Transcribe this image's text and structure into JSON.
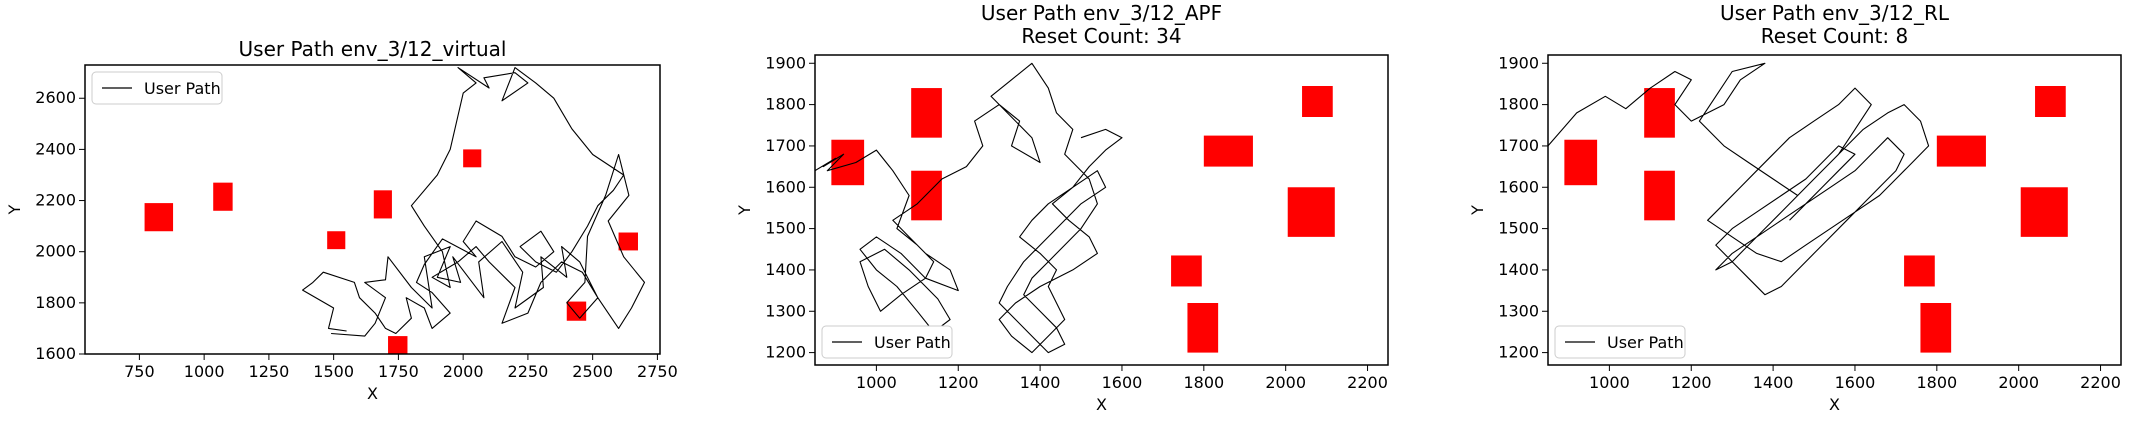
{
  "chart_data": [
    {
      "type": "line",
      "title": "User Path env_3/12_virtual",
      "subtitle": "",
      "xlabel": "X",
      "ylabel": "Y",
      "xlim": [
        540,
        2760
      ],
      "ylim": [
        1600,
        2730
      ],
      "xticks": [
        750,
        1000,
        1250,
        1500,
        1750,
        2000,
        2250,
        2500,
        2750
      ],
      "yticks": [
        1600,
        1800,
        2000,
        2200,
        2400,
        2600
      ],
      "legend": {
        "label": "User Path",
        "placement": "top-left"
      },
      "obstacles": [
        {
          "x": 770,
          "y": 2080,
          "w": 110,
          "h": 110
        },
        {
          "x": 1035,
          "y": 2160,
          "w": 75,
          "h": 110
        },
        {
          "x": 1475,
          "y": 2010,
          "w": 70,
          "h": 70
        },
        {
          "x": 1655,
          "y": 2130,
          "w": 70,
          "h": 110
        },
        {
          "x": 2000,
          "y": 2330,
          "w": 70,
          "h": 70
        },
        {
          "x": 1710,
          "y": 1600,
          "w": 75,
          "h": 70
        },
        {
          "x": 2400,
          "y": 1730,
          "w": 75,
          "h": 75
        },
        {
          "x": 2600,
          "y": 2005,
          "w": 75,
          "h": 70
        }
      ],
      "series": [
        {
          "x": [
            1490,
            1620,
            1660,
            1700,
            1620,
            1700,
            1710,
            1800,
            1880,
            1850,
            1950,
            1900,
            1990,
            1960,
            2080,
            2060,
            2150,
            2230,
            2200,
            2310,
            2300,
            2400,
            2380,
            2450,
            2520,
            2600,
            2650,
            2700,
            2620,
            2560,
            2640,
            2600,
            2550,
            2480,
            2470,
            2400,
            2450,
            2520,
            2460,
            2380,
            2300,
            2250,
            2150,
            2200,
            2100,
            2050,
            1980,
            1880,
            1950,
            1920,
            1850,
            1800,
            1900,
            1950,
            2000,
            2050,
            1980,
            2100,
            2080,
            2200,
            2250,
            2150,
            2200,
            2280,
            2350,
            2420,
            2500,
            2620,
            2580,
            2520,
            2480,
            2420,
            2360,
            2280,
            2220,
            2300,
            2350,
            2280,
            2200,
            2150,
            2050,
            2000,
            2050,
            1920,
            1850,
            1820,
            1880,
            1950,
            1880,
            1850,
            1780,
            1800,
            1740,
            1700,
            1660,
            1600,
            1580,
            1460,
            1420,
            1380,
            1500,
            1480,
            1550
          ],
          "y": [
            1680,
            1670,
            1720,
            1820,
            1880,
            1890,
            1980,
            1860,
            1780,
            1980,
            2020,
            1900,
            1880,
            1980,
            1820,
            1960,
            2040,
            1920,
            1780,
            1860,
            1980,
            1900,
            2020,
            1960,
            1820,
            1700,
            1780,
            1880,
            1980,
            2120,
            2220,
            2380,
            2220,
            2060,
            1880,
            1800,
            1740,
            1820,
            1920,
            1960,
            1880,
            1760,
            1720,
            1860,
            1960,
            2020,
            1960,
            1900,
            1860,
            2000,
            2100,
            2180,
            2300,
            2400,
            2620,
            2660,
            2720,
            2640,
            2680,
            2700,
            2660,
            2590,
            2720,
            2660,
            2600,
            2480,
            2380,
            2300,
            2240,
            2180,
            2100,
            2000,
            1920,
            1960,
            2020,
            2080,
            2000,
            1940,
            1980,
            2060,
            2120,
            2040,
            1980,
            2050,
            1950,
            1880,
            1840,
            1760,
            1700,
            1780,
            1820,
            1740,
            1680,
            1700,
            1760,
            1820,
            1880,
            1920,
            1880,
            1850,
            1780,
            1700,
            1690
          ]
        }
      ]
    },
    {
      "type": "line",
      "title": "User Path env_3/12_APF",
      "subtitle": "Reset Count: 34",
      "xlabel": "X",
      "ylabel": "Y",
      "xlim": [
        850,
        2250
      ],
      "ylim": [
        1170,
        1920
      ],
      "xticks": [
        1000,
        1200,
        1400,
        1600,
        1800,
        2000,
        2200
      ],
      "yticks": [
        1200,
        1300,
        1400,
        1500,
        1600,
        1700,
        1800,
        1900
      ],
      "legend": {
        "label": "User Path",
        "placement": "bottom-left"
      },
      "obstacles": [
        {
          "x": 890,
          "y": 1605,
          "w": 80,
          "h": 110
        },
        {
          "x": 1085,
          "y": 1720,
          "w": 75,
          "h": 120
        },
        {
          "x": 1085,
          "y": 1520,
          "w": 75,
          "h": 120
        },
        {
          "x": 1800,
          "y": 1650,
          "w": 120,
          "h": 75
        },
        {
          "x": 2040,
          "y": 1770,
          "w": 75,
          "h": 75
        },
        {
          "x": 2005,
          "y": 1480,
          "w": 115,
          "h": 120
        },
        {
          "x": 1720,
          "y": 1360,
          "w": 75,
          "h": 75
        },
        {
          "x": 1760,
          "y": 1200,
          "w": 75,
          "h": 120
        }
      ],
      "series": [
        {
          "x": [
            850,
            900,
            870,
            920,
            880,
            950,
            1000,
            1040,
            1080,
            1050,
            1100,
            1140,
            1120,
            1060,
            1010,
            980,
            960,
            1020,
            1080,
            1150,
            1180,
            1140,
            1100,
            1050,
            1000,
            960,
            1000,
            1060,
            1120,
            1200,
            1180,
            1120,
            1080,
            1040,
            1100,
            1160,
            1220,
            1260,
            1240,
            1300,
            1350,
            1330,
            1400,
            1380,
            1320,
            1280,
            1330,
            1380,
            1420,
            1440,
            1480,
            1460,
            1520,
            1540,
            1500,
            1460,
            1420,
            1380,
            1360,
            1400,
            1440,
            1460,
            1420,
            1380,
            1340,
            1300,
            1320,
            1360,
            1420,
            1460,
            1500,
            1560,
            1540,
            1480,
            1420,
            1380,
            1350,
            1400,
            1440,
            1420,
            1440,
            1460,
            1420,
            1380,
            1330,
            1300,
            1340,
            1400,
            1480,
            1540,
            1520,
            1470,
            1430,
            1480,
            1520,
            1560,
            1600,
            1560,
            1500
          ],
          "y": [
            1640,
            1670,
            1650,
            1680,
            1640,
            1660,
            1690,
            1640,
            1580,
            1500,
            1460,
            1420,
            1380,
            1340,
            1300,
            1360,
            1420,
            1450,
            1400,
            1330,
            1280,
            1250,
            1300,
            1360,
            1400,
            1450,
            1480,
            1440,
            1380,
            1350,
            1400,
            1440,
            1480,
            1520,
            1560,
            1620,
            1650,
            1700,
            1760,
            1800,
            1760,
            1700,
            1660,
            1720,
            1780,
            1820,
            1860,
            1900,
            1840,
            1780,
            1740,
            1680,
            1620,
            1560,
            1500,
            1460,
            1420,
            1380,
            1340,
            1300,
            1260,
            1220,
            1200,
            1240,
            1280,
            1320,
            1360,
            1420,
            1480,
            1520,
            1560,
            1600,
            1640,
            1600,
            1560,
            1520,
            1480,
            1440,
            1400,
            1360,
            1320,
            1280,
            1240,
            1200,
            1240,
            1280,
            1320,
            1360,
            1400,
            1440,
            1480,
            1520,
            1560,
            1600,
            1650,
            1690,
            1720,
            1740,
            1720
          ]
        }
      ]
    },
    {
      "type": "line",
      "title": "User Path env_3/12_RL",
      "subtitle": "Reset Count: 8",
      "xlabel": "X",
      "ylabel": "Y",
      "xlim": [
        850,
        2250
      ],
      "ylim": [
        1170,
        1920
      ],
      "xticks": [
        1000,
        1200,
        1400,
        1600,
        1800,
        2000,
        2200
      ],
      "yticks": [
        1200,
        1300,
        1400,
        1500,
        1600,
        1700,
        1800,
        1900
      ],
      "legend": {
        "label": "User Path",
        "placement": "bottom-left"
      },
      "obstacles": [
        {
          "x": 890,
          "y": 1605,
          "w": 80,
          "h": 110
        },
        {
          "x": 1085,
          "y": 1720,
          "w": 75,
          "h": 120
        },
        {
          "x": 1085,
          "y": 1520,
          "w": 75,
          "h": 120
        },
        {
          "x": 1800,
          "y": 1650,
          "w": 120,
          "h": 75
        },
        {
          "x": 2040,
          "y": 1770,
          "w": 75,
          "h": 75
        },
        {
          "x": 2005,
          "y": 1480,
          "w": 115,
          "h": 120
        },
        {
          "x": 1720,
          "y": 1360,
          "w": 75,
          "h": 75
        },
        {
          "x": 1760,
          "y": 1200,
          "w": 75,
          "h": 120
        }
      ],
      "series": [
        {
          "x": [
            850,
            920,
            990,
            1040,
            1100,
            1160,
            1200,
            1160,
            1200,
            1280,
            1320,
            1380,
            1300,
            1260,
            1220,
            1280,
            1340,
            1400,
            1460,
            1500,
            1560,
            1600,
            1640,
            1600,
            1560,
            1500,
            1440,
            1400,
            1360,
            1320,
            1280,
            1240,
            1300,
            1360,
            1420,
            1480,
            1540,
            1600,
            1660,
            1700,
            1740,
            1780,
            1760,
            1720,
            1680,
            1620,
            1580,
            1540,
            1500,
            1460,
            1420,
            1380,
            1340,
            1300,
            1260,
            1300,
            1360,
            1420,
            1480,
            1540,
            1600,
            1640,
            1680,
            1720,
            1700,
            1660,
            1620,
            1580,
            1540,
            1500,
            1460,
            1420,
            1380,
            1340,
            1300,
            1260,
            1300,
            1360,
            1420,
            1480,
            1520,
            1560,
            1600,
            1560,
            1520,
            1480,
            1440
          ],
          "y": [
            1700,
            1780,
            1820,
            1790,
            1840,
            1880,
            1860,
            1800,
            1760,
            1800,
            1860,
            1900,
            1880,
            1820,
            1760,
            1700,
            1660,
            1620,
            1580,
            1620,
            1680,
            1740,
            1800,
            1840,
            1800,
            1760,
            1720,
            1680,
            1640,
            1600,
            1560,
            1520,
            1480,
            1440,
            1420,
            1460,
            1500,
            1540,
            1580,
            1620,
            1660,
            1700,
            1760,
            1800,
            1780,
            1740,
            1700,
            1660,
            1620,
            1580,
            1540,
            1500,
            1460,
            1420,
            1400,
            1440,
            1480,
            1520,
            1560,
            1600,
            1640,
            1680,
            1720,
            1680,
            1640,
            1600,
            1560,
            1520,
            1480,
            1440,
            1400,
            1360,
            1340,
            1380,
            1420,
            1460,
            1500,
            1540,
            1580,
            1620,
            1660,
            1700,
            1680,
            1640,
            1600,
            1560,
            1520
          ]
        }
      ]
    }
  ]
}
